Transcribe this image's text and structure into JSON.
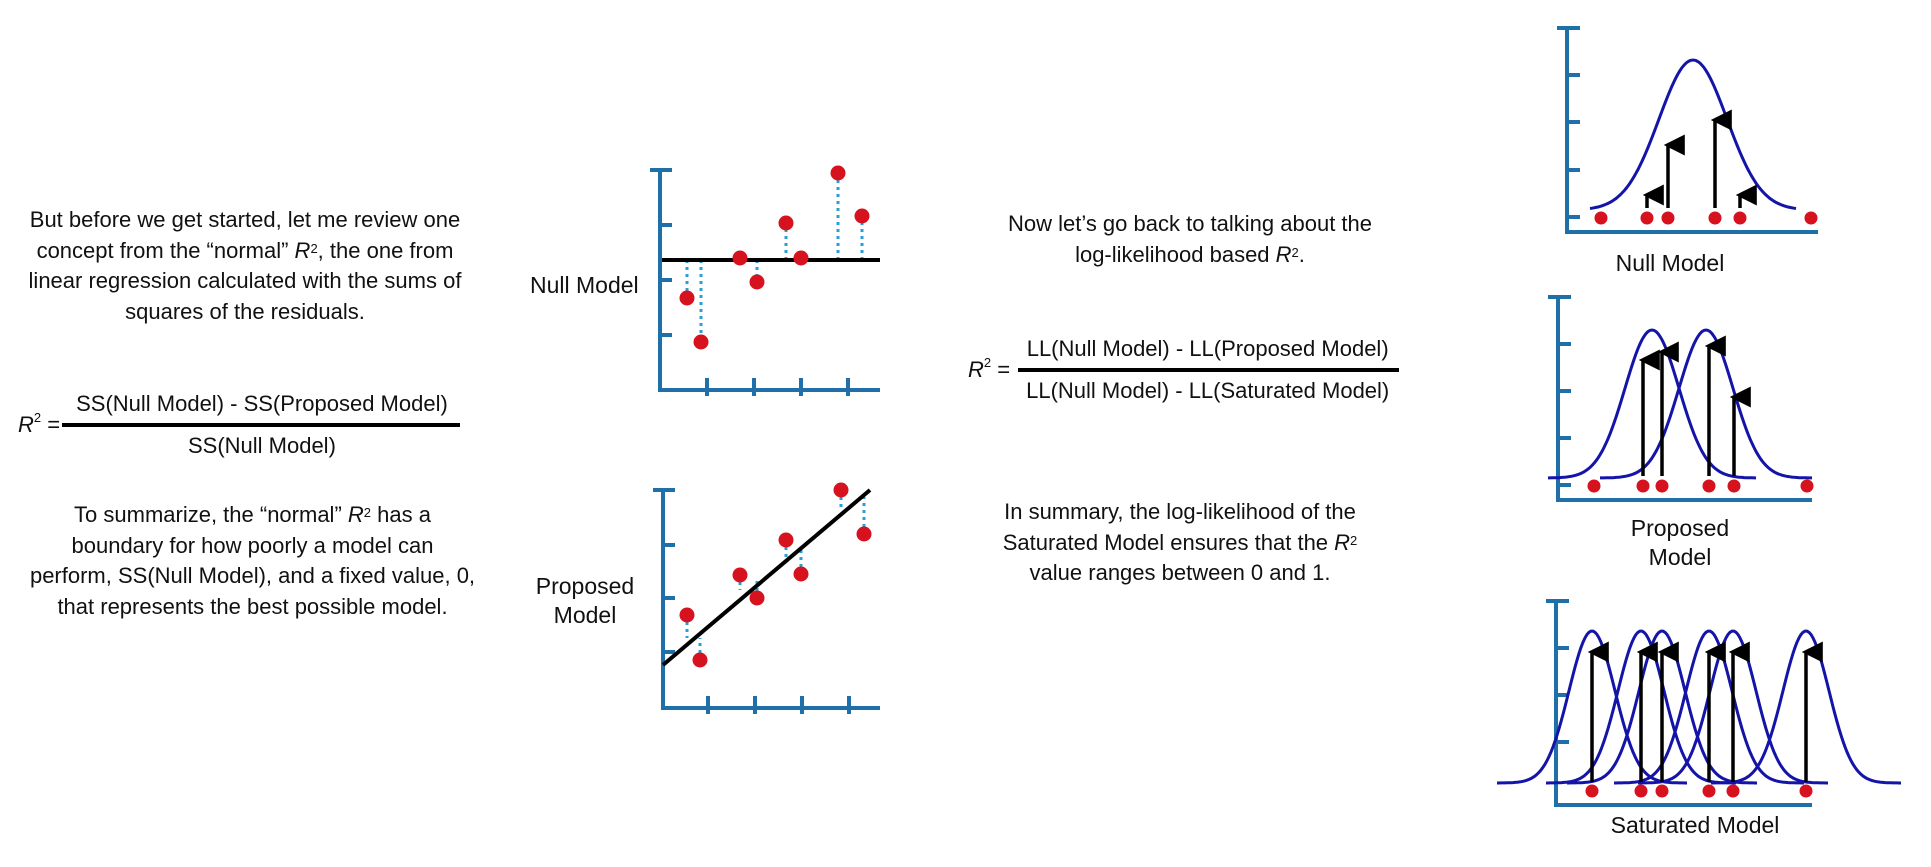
{
  "intro": {
    "line1": "But before we get started, let me review one",
    "line2a": "concept from the “normal” ",
    "line2b": "R",
    "line2c": "2",
    "line2d": ", the one from",
    "line3": "linear regression calculated with the sums of",
    "line4": "squares of the residuals."
  },
  "formula_ss": {
    "lhs_r": "R",
    "lhs_sup": "2",
    "lhs_eq": " =",
    "numerator": "SS(Null Model) - SS(Proposed Model)",
    "denominator": "SS(Null Model)"
  },
  "summary_left": {
    "line1a": "To summarize, the “normal” ",
    "line1b": "R",
    "line1c": "2",
    "line1d": " has a",
    "line2": "boundary for how poorly a model can",
    "line3": "perform, SS(Null Model), and a fixed value, 0,",
    "line4": "that represents the best possible model."
  },
  "scatter_labels": {
    "null_model": "Null Model",
    "proposed_line1": "Proposed",
    "proposed_line2": "Model"
  },
  "middle_intro": {
    "line1": "Now let’s go back to talking about the",
    "line2a": "log-likelihood based ",
    "line2b": "R",
    "line2c": "2",
    "line2d": "."
  },
  "formula_ll": {
    "lhs_r": "R",
    "lhs_sup": "2",
    "lhs_eq": " =",
    "numerator": "LL(Null Model) - LL(Proposed Model)",
    "denominator": "LL(Null Model) - LL(Saturated Model)"
  },
  "summary_middle": {
    "line1": "In summary, the log-likelihood of the",
    "line2a": "Saturated Model ensures that the ",
    "line2b": "R",
    "line2c": "2",
    "line3": "value ranges between 0 and 1."
  },
  "curve_labels": {
    "null_model": "Null Model",
    "proposed_line1": "Proposed",
    "proposed_line2": "Model",
    "saturated_model": "Saturated Model"
  },
  "colors": {
    "axis": "#1f6fa8",
    "point": "#d7121f",
    "residual": "#2a9fd6",
    "curve": "#1414a8",
    "line": "#000000"
  }
}
